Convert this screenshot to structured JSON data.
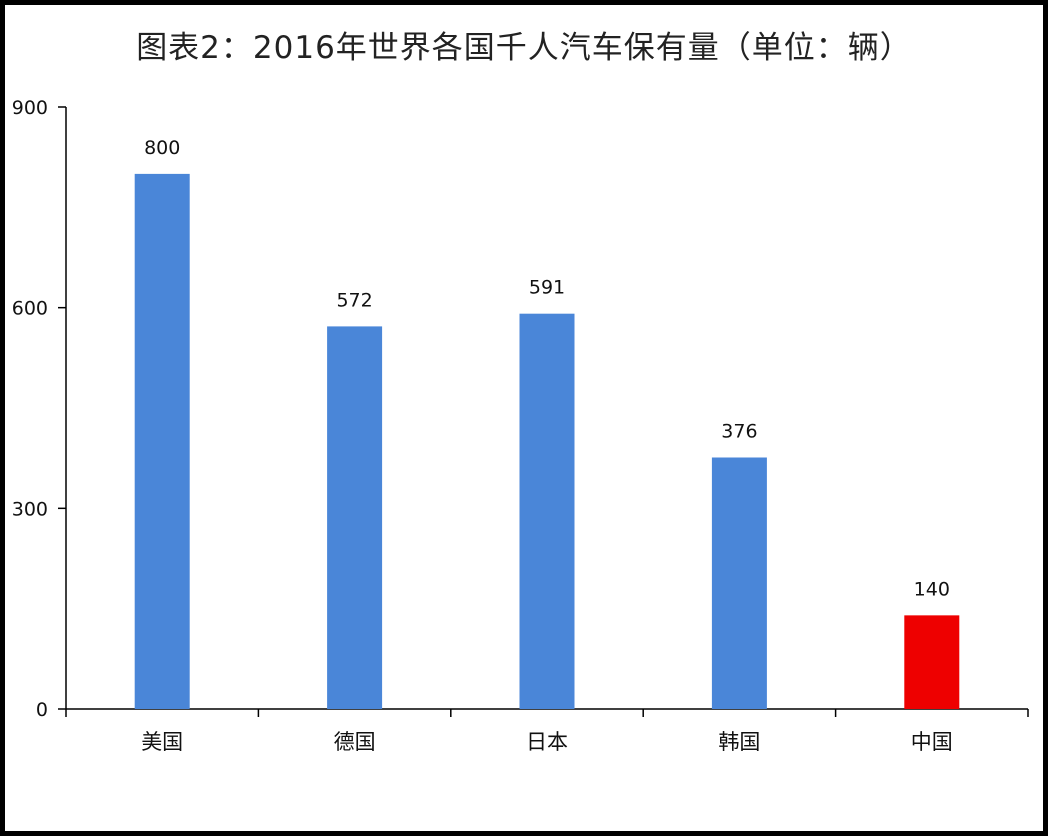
{
  "chart_data": {
    "type": "bar",
    "title": "图表2：2016年世界各国千人汽车保有量（单位：辆）",
    "xlabel": "",
    "ylabel": "",
    "categories": [
      "美国",
      "德国",
      "日本",
      "韩国",
      "中国"
    ],
    "values": [
      800,
      572,
      591,
      376,
      140
    ],
    "data_labels": [
      "800",
      "572",
      "591",
      "376",
      "140"
    ],
    "bar_colors": [
      "#4a86d8",
      "#4a86d8",
      "#4a86d8",
      "#4a86d8",
      "#ee0000"
    ],
    "ylim": [
      0,
      900
    ],
    "yticks": [
      0,
      300,
      600,
      900
    ],
    "ytick_labels": [
      "0",
      "300",
      "600",
      "900"
    ],
    "grid": false,
    "legend": "none"
  }
}
